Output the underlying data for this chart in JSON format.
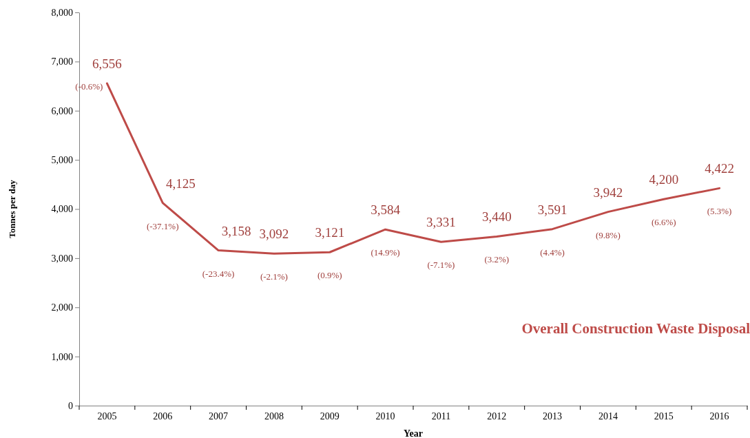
{
  "chart_data": {
    "type": "line",
    "xlabel": "Year",
    "ylabel": "Tonnes per day",
    "categories": [
      "2005",
      "2006",
      "2007",
      "2008",
      "2009",
      "2010",
      "2011",
      "2012",
      "2013",
      "2014",
      "2015",
      "2016"
    ],
    "series": [
      {
        "name": "Overall Construction Waste Disposal",
        "color": "#be4b48",
        "values": [
          6556,
          4125,
          3158,
          3092,
          3121,
          3584,
          3331,
          3440,
          3591,
          3942,
          4200,
          4422
        ]
      }
    ],
    "ylim": [
      0,
      8000
    ],
    "yticks": [
      {
        "value": 0,
        "label": "0"
      },
      {
        "value": 1000,
        "label": "1,000"
      },
      {
        "value": 2000,
        "label": "2,000"
      },
      {
        "value": 3000,
        "label": "3,000"
      },
      {
        "value": 4000,
        "label": "4,000"
      },
      {
        "value": 5000,
        "label": "5,000"
      },
      {
        "value": 6000,
        "label": "6,000"
      },
      {
        "value": 7000,
        "label": "7,000"
      },
      {
        "value": 8000,
        "label": "8,000"
      }
    ],
    "value_labels": [
      "6,556",
      "4,125",
      "3,158",
      "3,092",
      "3,121",
      "3,584",
      "3,331",
      "3,440",
      "3,591",
      "3,942",
      "4,200",
      "4,422"
    ],
    "grid": false,
    "legend": false,
    "marker": "none",
    "line_style": "solid",
    "annotations": [
      {
        "text": "(-0.6%)",
        "x": "2005",
        "y": 6556
      },
      {
        "text": "(-37.1%)",
        "x": "2006",
        "y": 4125
      },
      {
        "text": "(-23.4%)",
        "x": "2007",
        "y": 3158
      },
      {
        "text": "(-2.1%)",
        "x": "2008",
        "y": 3092
      },
      {
        "text": "(0.9%)",
        "x": "2009",
        "y": 3121
      },
      {
        "text": "(14.9%)",
        "x": "2010",
        "y": 3584
      },
      {
        "text": "(-7.1%)",
        "x": "2011",
        "y": 3331
      },
      {
        "text": "(3.2%)",
        "x": "2012",
        "y": 3440
      },
      {
        "text": "(4.4%)",
        "x": "2013",
        "y": 3591
      },
      {
        "text": "(9.8%)",
        "x": "2014",
        "y": 3942
      },
      {
        "text": "(6.6%)",
        "x": "2015",
        "y": 4200
      },
      {
        "text": "(5.3%)",
        "x": "2016",
        "y": 4422
      }
    ]
  }
}
